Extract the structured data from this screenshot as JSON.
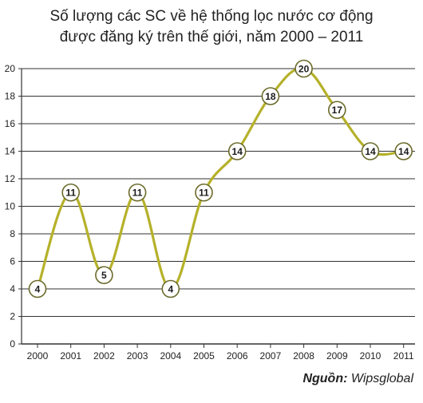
{
  "title_line1": "Số lượng các SC về hệ thống lọc nước cơ động",
  "title_line2": "được đăng ký trên thế giới, năm 2000 – 2011",
  "source_label": "Nguồn:",
  "source_value": "Wipsglobal",
  "colors": {
    "line": "#b5b12a",
    "marker_fill": "#ffffff",
    "marker_stroke": "#6b6a2a",
    "grid": "#333333"
  },
  "chart_data": {
    "type": "line",
    "title": "Số lượng các SC về hệ thống lọc nước cơ động được đăng ký trên thế giới, năm 2000 – 2011",
    "categories": [
      "2000",
      "2001",
      "2002",
      "2003",
      "2004",
      "2005",
      "2006",
      "2007",
      "2008",
      "2009",
      "2010",
      "2011"
    ],
    "series": [
      {
        "values": [
          4,
          11,
          5,
          11,
          4,
          11,
          14,
          18,
          20,
          17,
          14,
          14
        ]
      }
    ],
    "yticks": [
      "0",
      "2",
      "4",
      "6",
      "8",
      "10",
      "12",
      "14",
      "16",
      "18",
      "20"
    ],
    "ylim": [
      0,
      20
    ],
    "grid": true,
    "data_labels": true,
    "smooth": true
  }
}
